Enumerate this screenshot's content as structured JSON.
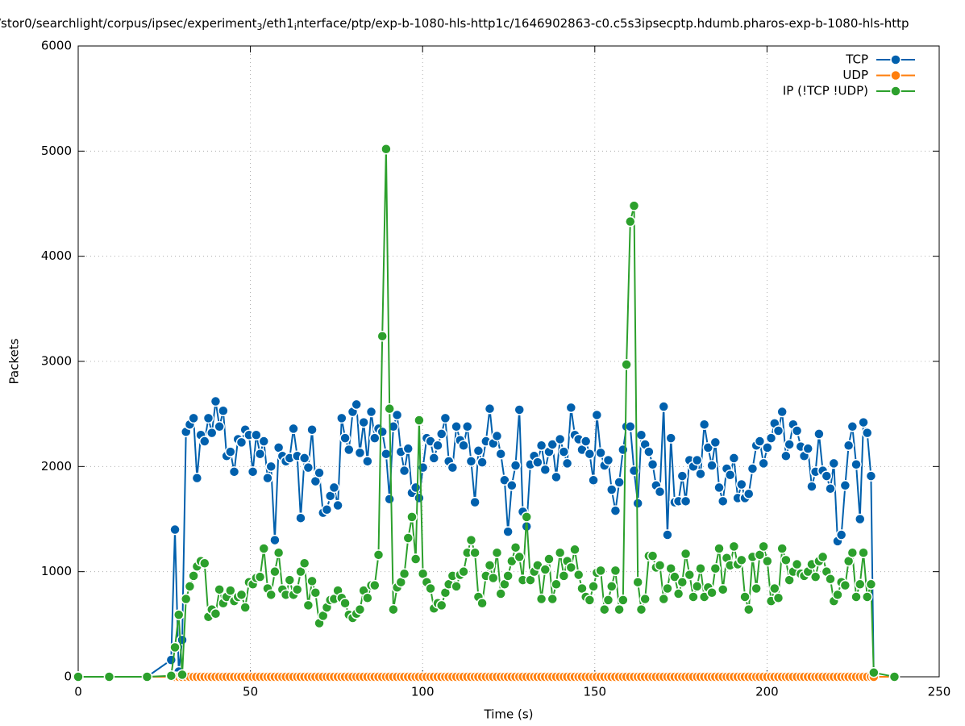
{
  "chart_data": {
    "type": "line",
    "title": [
      "/stor0/searchlight/corpus/ipsec/experiment",
      "3",
      "/eth1",
      "i",
      "nterface/ptp/exp-b-1080-hls-http1c/1646902863-c0.c5s3ipsecptp.hdumb.pharos-exp-b-1080-hls-http"
    ],
    "xlabel": "Time (s)",
    "ylabel": "Packets",
    "xlim": [
      0,
      250
    ],
    "xticks": [
      0,
      50,
      100,
      150,
      200,
      250
    ],
    "ylim": [
      0,
      6000
    ],
    "yticks": [
      0,
      1000,
      2000,
      3000,
      4000,
      5000,
      6000
    ],
    "grid": true,
    "legend": "top-right",
    "x": [
      0,
      9,
      20,
      27.0,
      28.1,
      29.2,
      30.2,
      31.3,
      32.4,
      33.5,
      34.5,
      35.6,
      36.7,
      37.8,
      38.8,
      39.9,
      41.0,
      42.1,
      43.1,
      44.2,
      45.3,
      46.4,
      47.4,
      48.5,
      49.6,
      50.7,
      51.7,
      52.8,
      53.9,
      55.0,
      56.0,
      57.1,
      58.2,
      59.3,
      60.3,
      61.4,
      62.5,
      63.6,
      64.6,
      65.7,
      66.8,
      67.9,
      68.9,
      70.0,
      71.1,
      72.2,
      73.2,
      74.3,
      75.4,
      76.5,
      77.5,
      78.6,
      79.7,
      80.8,
      81.8,
      82.9,
      84.0,
      85.1,
      86.1,
      87.2,
      88.3,
      89.4,
      90.4,
      91.5,
      92.6,
      93.7,
      94.7,
      95.8,
      96.9,
      98.0,
      99.0,
      100.1,
      101.2,
      102.3,
      103.3,
      104.4,
      105.5,
      106.6,
      107.6,
      108.7,
      109.8,
      110.9,
      111.9,
      113.0,
      114.1,
      115.2,
      116.2,
      117.3,
      118.4,
      119.5,
      120.5,
      121.6,
      122.7,
      123.8,
      124.8,
      125.9,
      127.0,
      128.1,
      129.1,
      130.2,
      131.3,
      132.4,
      133.4,
      134.5,
      135.6,
      136.7,
      137.7,
      138.8,
      139.9,
      141.0,
      142.0,
      143.1,
      144.2,
      145.3,
      146.3,
      147.4,
      148.5,
      149.6,
      150.6,
      151.7,
      152.8,
      153.9,
      154.9,
      156.0,
      157.1,
      158.2,
      159.2,
      160.3,
      161.4,
      162.5,
      163.5,
      164.6,
      165.7,
      166.8,
      167.8,
      168.9,
      170.0,
      171.1,
      172.1,
      173.2,
      174.3,
      175.4,
      176.4,
      177.5,
      178.6,
      179.7,
      180.7,
      181.8,
      182.9,
      184.0,
      185.0,
      186.1,
      187.2,
      188.3,
      189.3,
      190.4,
      191.5,
      192.6,
      193.6,
      194.7,
      195.8,
      196.9,
      197.9,
      199.0,
      200.1,
      201.2,
      202.2,
      203.3,
      204.4,
      205.5,
      206.5,
      207.6,
      208.7,
      209.8,
      210.8,
      211.9,
      213.0,
      214.1,
      215.1,
      216.2,
      217.3,
      218.4,
      219.4,
      220.5,
      221.6,
      222.7,
      223.7,
      224.8,
      225.9,
      227.0,
      228.0,
      229.1,
      230.2,
      231,
      237
    ],
    "series": [
      {
        "name": "TCP",
        "color": "#0060ad",
        "values": [
          0,
          0,
          0,
          160,
          1400,
          50,
          350,
          2330,
          2400,
          2460,
          1890,
          2300,
          2240,
          2460,
          2320,
          2620,
          2380,
          2530,
          2100,
          2140,
          1950,
          2260,
          2230,
          2350,
          2300,
          1950,
          2300,
          2120,
          2240,
          1890,
          2000,
          1300,
          2180,
          2100,
          2050,
          2080,
          2360,
          2100,
          1510,
          2080,
          1990,
          2350,
          1860,
          1940,
          1560,
          1590,
          1720,
          1800,
          1630,
          2460,
          2270,
          2160,
          2520,
          2590,
          2130,
          2420,
          2050,
          2520,
          2270,
          2360,
          2330,
          2120,
          1690,
          2380,
          2490,
          2140,
          1960,
          2170,
          1750,
          1800,
          1700,
          1990,
          2270,
          2240,
          2080,
          2200,
          2310,
          2460,
          2050,
          1990,
          2380,
          2250,
          2200,
          2380,
          2050,
          1660,
          2150,
          2040,
          2240,
          2550,
          2220,
          2290,
          2120,
          1870,
          1380,
          1820,
          2010,
          2540,
          1570,
          1430,
          2020,
          2100,
          2040,
          2200,
          1970,
          2140,
          2210,
          1900,
          2260,
          2140,
          2030,
          2560,
          2300,
          2260,
          2160,
          2240,
          2120,
          1870,
          2490,
          2130,
          2010,
          2060,
          1780,
          1580,
          1850,
          2160,
          2380,
          2380,
          1960,
          1650,
          2300,
          2210,
          2140,
          2020,
          1820,
          1760,
          2570,
          1350,
          2270,
          1660,
          1670,
          1910,
          1670,
          2060,
          2000,
          2060,
          1930,
          2400,
          2180,
          2010,
          2230,
          1800,
          1670,
          1980,
          1920,
          2080,
          1700,
          1830,
          1700,
          1740,
          1980,
          2200,
          2240,
          2030,
          2180,
          2270,
          2410,
          2340,
          2520,
          2100,
          2210,
          2400,
          2340,
          2190,
          2100,
          2170,
          1810,
          1950,
          2310,
          1960,
          1910,
          1790,
          2030,
          1290,
          1350,
          1820,
          2200,
          2380,
          2020,
          1500,
          2420,
          2320,
          1910,
          0,
          0
        ]
      },
      {
        "name": "UDP",
        "color": "#ff7f0e",
        "values": [
          0,
          0,
          0,
          0,
          0,
          0,
          0,
          0,
          0,
          0,
          0,
          0,
          0,
          0,
          0,
          0,
          0,
          0,
          0,
          0,
          0,
          0,
          0,
          0,
          0,
          0,
          0,
          0,
          0,
          0,
          0,
          0,
          0,
          0,
          0,
          0,
          0,
          0,
          0,
          0,
          0,
          0,
          0,
          0,
          0,
          0,
          0,
          0,
          0,
          0,
          0,
          0,
          0,
          0,
          0,
          0,
          0,
          0,
          0,
          0,
          0,
          0,
          0,
          0,
          0,
          0,
          0,
          0,
          0,
          0,
          0,
          0,
          0,
          0,
          0,
          0,
          0,
          0,
          0,
          0,
          0,
          0,
          0,
          0,
          0,
          0,
          0,
          0,
          0,
          0,
          0,
          0,
          0,
          0,
          0,
          0,
          0,
          0,
          0,
          0,
          0,
          0,
          0,
          0,
          0,
          0,
          0,
          0,
          0,
          0,
          0,
          0,
          0,
          0,
          0,
          0,
          0,
          0,
          0,
          0,
          0,
          0,
          0,
          0,
          0,
          0,
          0,
          0,
          0,
          0,
          0,
          0,
          0,
          0,
          0,
          0,
          0,
          0,
          0,
          0,
          0,
          0,
          0,
          0,
          0,
          0,
          0,
          0,
          0,
          0,
          0,
          0,
          0,
          0,
          0,
          0,
          0,
          0,
          0,
          0,
          0,
          0,
          0,
          0,
          0,
          0,
          0,
          0,
          0,
          0,
          0,
          0,
          0,
          0,
          0,
          0,
          0,
          0,
          0,
          0,
          0,
          0,
          0,
          0,
          0,
          0,
          0,
          0,
          0,
          0,
          0,
          0,
          0,
          0,
          0
        ]
      },
      {
        "name": "IP (!TCP  !UDP)",
        "color": "#2ca02c",
        "values": [
          0,
          0,
          0,
          10,
          280,
          590,
          20,
          740,
          860,
          960,
          1050,
          1100,
          1080,
          570,
          640,
          600,
          830,
          700,
          760,
          820,
          720,
          760,
          780,
          660,
          900,
          880,
          940,
          950,
          1220,
          840,
          780,
          1000,
          1180,
          830,
          780,
          920,
          780,
          830,
          1000,
          1080,
          680,
          910,
          800,
          510,
          580,
          660,
          730,
          740,
          820,
          750,
          700,
          590,
          560,
          600,
          640,
          820,
          750,
          870,
          870,
          1160,
          3240,
          5020,
          2550,
          640,
          850,
          900,
          980,
          1320,
          1520,
          1120,
          2440,
          980,
          900,
          840,
          650,
          700,
          680,
          800,
          880,
          960,
          860,
          970,
          1000,
          1180,
          1300,
          1180,
          760,
          700,
          960,
          1060,
          940,
          1180,
          790,
          880,
          960,
          1100,
          1230,
          1140,
          920,
          1520,
          920,
          1000,
          1060,
          740,
          1020,
          1120,
          740,
          880,
          1180,
          960,
          1100,
          1040,
          1210,
          970,
          840,
          760,
          730,
          860,
          990,
          1010,
          640,
          730,
          860,
          1010,
          640,
          730,
          2970,
          4330,
          4480,
          900,
          640,
          740,
          1150,
          1150,
          1040,
          1060,
          740,
          840,
          1030,
          950,
          790,
          900,
          1170,
          970,
          760,
          860,
          1030,
          760,
          850,
          800,
          1030,
          1220,
          830,
          1130,
          1060,
          1240,
          1070,
          1110,
          760,
          640,
          1140,
          840,
          1160,
          1240,
          1100,
          720,
          840,
          750,
          1220,
          1110,
          920,
          1000,
          1070,
          980,
          960,
          1000,
          1070,
          950,
          1100,
          1140,
          1000,
          930,
          720,
          780,
          900,
          870,
          1100,
          1180,
          760,
          880,
          1180,
          760,
          880,
          40,
          0
        ]
      }
    ]
  }
}
